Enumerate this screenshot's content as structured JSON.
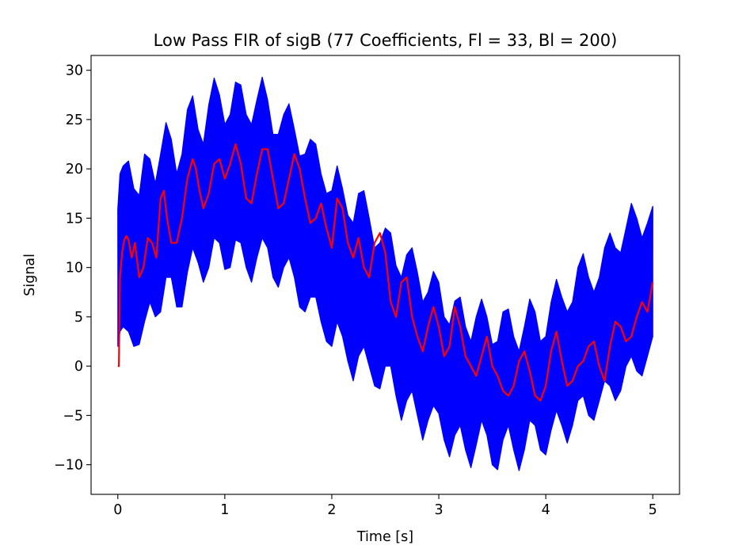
{
  "chart_data": {
    "type": "line",
    "title": "Low Pass FIR of sigB (77 Coefficients, Fl = 33, Bl = 200)",
    "xlabel": "Time [s]",
    "ylabel": "Signal",
    "xlim": [
      -0.25,
      5.25
    ],
    "ylim": [
      -13.0,
      31.5
    ],
    "xticks": [
      0,
      1,
      2,
      3,
      4,
      5
    ],
    "xtick_labels": [
      "0",
      "1",
      "2",
      "3",
      "4",
      "5"
    ],
    "yticks": [
      -10,
      -5,
      0,
      5,
      10,
      15,
      20,
      25,
      30
    ],
    "ytick_labels": [
      "−10",
      "−5",
      "0",
      "5",
      "10",
      "15",
      "20",
      "25",
      "30"
    ],
    "grid": false,
    "legend": "none",
    "series": [
      {
        "role": "raw",
        "color": "#0000ff",
        "render": "band",
        "x": [
          0.0,
          0.02,
          0.05,
          0.1,
          0.15,
          0.2,
          0.25,
          0.3,
          0.35,
          0.4,
          0.45,
          0.5,
          0.55,
          0.6,
          0.65,
          0.7,
          0.75,
          0.8,
          0.85,
          0.9,
          0.95,
          1.0,
          1.05,
          1.1,
          1.15,
          1.2,
          1.25,
          1.3,
          1.35,
          1.4,
          1.45,
          1.5,
          1.55,
          1.6,
          1.65,
          1.7,
          1.75,
          1.8,
          1.85,
          1.9,
          1.95,
          2.0,
          2.05,
          2.1,
          2.15,
          2.2,
          2.25,
          2.3,
          2.35,
          2.4,
          2.45,
          2.5,
          2.55,
          2.6,
          2.65,
          2.7,
          2.75,
          2.8,
          2.85,
          2.9,
          2.95,
          3.0,
          3.05,
          3.1,
          3.15,
          3.2,
          3.25,
          3.3,
          3.35,
          3.4,
          3.45,
          3.5,
          3.55,
          3.6,
          3.65,
          3.7,
          3.75,
          3.8,
          3.85,
          3.9,
          3.95,
          4.0,
          4.05,
          4.1,
          4.15,
          4.2,
          4.25,
          4.3,
          4.35,
          4.4,
          4.45,
          4.5,
          4.55,
          4.6,
          4.65,
          4.7,
          4.75,
          4.8,
          4.85,
          4.9,
          4.95,
          5.0
        ],
        "upper": [
          16.0,
          19.5,
          20.3,
          20.8,
          18.0,
          17.3,
          21.5,
          21.0,
          18.5,
          21.5,
          24.7,
          23.0,
          19.5,
          21.5,
          26.0,
          27.4,
          24.0,
          22.5,
          26.5,
          29.2,
          27.5,
          24.5,
          25.5,
          28.8,
          28.5,
          25.5,
          24.5,
          27.0,
          29.3,
          27.0,
          23.5,
          23.5,
          25.5,
          26.6,
          24.0,
          21.3,
          21.5,
          23.0,
          22.5,
          19.5,
          17.5,
          17.8,
          20.3,
          18.0,
          15.3,
          14.5,
          17.5,
          17.8,
          15.0,
          12.0,
          12.5,
          14.0,
          13.5,
          10.2,
          9.0,
          11.3,
          12.0,
          9.5,
          6.5,
          7.5,
          9.6,
          8.5,
          5.0,
          4.2,
          6.6,
          7.0,
          4.0,
          2.5,
          5.0,
          6.8,
          5.0,
          2.2,
          2.5,
          5.5,
          5.8,
          3.0,
          1.5,
          4.0,
          6.8,
          5.5,
          2.5,
          3.0,
          6.5,
          8.8,
          7.0,
          5.5,
          6.5,
          10.0,
          11.4,
          9.0,
          7.5,
          9.0,
          12.0,
          13.5,
          12.0,
          11.5,
          14.0,
          16.5,
          15.0,
          13.0,
          14.5,
          16.2
        ],
        "lower": [
          2.0,
          3.5,
          4.0,
          3.5,
          2.0,
          2.2,
          4.5,
          6.5,
          5.0,
          5.5,
          9.0,
          9.0,
          6.0,
          6.0,
          9.5,
          12.0,
          10.5,
          8.5,
          10.0,
          13.0,
          12.5,
          9.8,
          10.0,
          12.8,
          12.5,
          10.0,
          8.5,
          11.0,
          13.0,
          12.0,
          9.0,
          8.0,
          10.0,
          11.0,
          9.0,
          6.0,
          5.5,
          7.0,
          7.0,
          4.5,
          2.5,
          2.0,
          4.5,
          3.0,
          0.5,
          -1.5,
          1.0,
          2.0,
          0.0,
          -2.0,
          -2.3,
          0.0,
          0.0,
          -3.0,
          -5.5,
          -3.5,
          -2.5,
          -5.0,
          -7.5,
          -5.5,
          -4.0,
          -4.8,
          -7.5,
          -9.2,
          -7.0,
          -6.0,
          -8.5,
          -10.3,
          -8.0,
          -5.5,
          -7.0,
          -10.0,
          -10.5,
          -7.5,
          -6.0,
          -8.5,
          -10.6,
          -8.5,
          -5.5,
          -6.0,
          -8.5,
          -9.0,
          -6.5,
          -4.5,
          -6.0,
          -7.8,
          -6.0,
          -3.5,
          -3.0,
          -5.0,
          -5.5,
          -3.5,
          -1.5,
          -2.0,
          -3.5,
          -2.5,
          0.0,
          1.0,
          -0.5,
          -1.0,
          1.0,
          3.0
        ]
      },
      {
        "role": "filtered",
        "color": "#ff0000",
        "x": [
          0.0,
          0.01,
          0.02,
          0.04,
          0.06,
          0.08,
          0.1,
          0.13,
          0.16,
          0.2,
          0.24,
          0.28,
          0.32,
          0.36,
          0.4,
          0.43,
          0.46,
          0.5,
          0.55,
          0.6,
          0.65,
          0.7,
          0.73,
          0.76,
          0.8,
          0.85,
          0.9,
          0.95,
          1.0,
          1.05,
          1.1,
          1.15,
          1.2,
          1.25,
          1.3,
          1.35,
          1.4,
          1.45,
          1.5,
          1.55,
          1.6,
          1.65,
          1.7,
          1.75,
          1.8,
          1.85,
          1.9,
          1.95,
          2.0,
          2.05,
          2.1,
          2.15,
          2.2,
          2.25,
          2.3,
          2.35,
          2.4,
          2.45,
          2.5,
          2.55,
          2.6,
          2.65,
          2.7,
          2.75,
          2.8,
          2.85,
          2.9,
          2.95,
          3.0,
          3.05,
          3.1,
          3.15,
          3.2,
          3.25,
          3.3,
          3.35,
          3.4,
          3.45,
          3.5,
          3.55,
          3.6,
          3.65,
          3.7,
          3.75,
          3.8,
          3.85,
          3.9,
          3.95,
          4.0,
          4.05,
          4.1,
          4.15,
          4.2,
          4.25,
          4.3,
          4.35,
          4.4,
          4.45,
          4.5,
          4.55,
          4.6,
          4.65,
          4.7,
          4.75,
          4.8,
          4.85,
          4.9,
          4.95,
          5.0
        ],
        "y": [
          0.0,
          0.0,
          9.0,
          11.5,
          12.8,
          13.2,
          12.8,
          11.0,
          12.5,
          9.0,
          10.0,
          13.0,
          12.5,
          11.0,
          17.0,
          17.8,
          15.0,
          12.5,
          12.5,
          15.0,
          19.0,
          21.0,
          20.0,
          18.0,
          16.0,
          17.5,
          20.5,
          21.0,
          19.0,
          20.5,
          22.5,
          20.5,
          17.0,
          16.5,
          19.5,
          22.0,
          22.0,
          19.0,
          16.0,
          16.5,
          19.0,
          21.5,
          20.0,
          17.0,
          14.5,
          15.0,
          16.5,
          14.0,
          12.0,
          17.0,
          16.0,
          12.5,
          11.0,
          13.0,
          10.0,
          9.0,
          12.5,
          13.5,
          11.5,
          6.5,
          5.0,
          8.5,
          9.0,
          5.0,
          3.0,
          1.5,
          4.0,
          6.0,
          4.0,
          1.0,
          2.0,
          6.0,
          4.0,
          1.0,
          0.0,
          -1.0,
          1.0,
          3.0,
          0.0,
          -1.0,
          -2.5,
          -3.0,
          -2.0,
          0.5,
          1.5,
          -0.5,
          -3.0,
          -3.5,
          -2.0,
          1.5,
          3.5,
          0.5,
          -2.0,
          -1.5,
          0.0,
          0.5,
          2.0,
          2.5,
          0.0,
          -1.5,
          2.0,
          4.5,
          4.0,
          2.5,
          3.0,
          5.0,
          6.5,
          5.5,
          8.5
        ]
      }
    ]
  }
}
